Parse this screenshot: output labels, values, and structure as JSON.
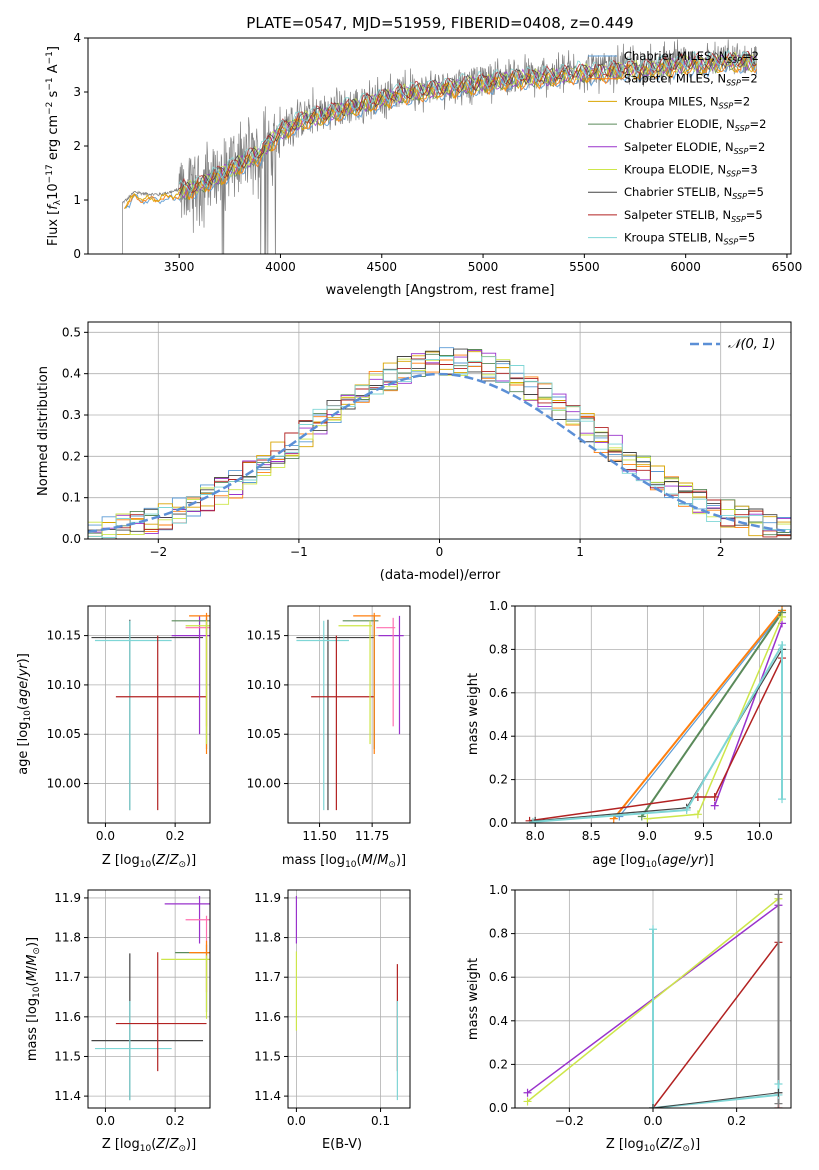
{
  "chart_data": [
    {
      "id": "spectrum",
      "type": "line",
      "title": "PLATE=0547, MJD=51959, FIBERID=0408, z=0.449",
      "xlabel": "wavelength [Angstrom, rest frame]",
      "ylabel": "Flux [fλ10⁻¹⁷ erg cm⁻² s⁻¹ A⁻¹]",
      "xlim": [
        3050,
        6520
      ],
      "ylim": [
        0,
        4
      ],
      "xticks": [
        "3500",
        "4000",
        "4500",
        "5000",
        "5500",
        "6000",
        "6500"
      ],
      "xtick_values": [
        3500,
        4000,
        4500,
        5000,
        5500,
        6000,
        6500
      ],
      "yticks": [
        "0",
        "1",
        "2",
        "3",
        "4"
      ],
      "ytick_values": [
        0,
        1,
        2,
        3,
        4
      ],
      "data_color": "#808080",
      "continuum": {
        "x": [
          3220,
          3240,
          3280,
          3320,
          3400,
          3460,
          3500,
          3600,
          3700,
          3800,
          3900,
          4000,
          4100,
          4200,
          4300,
          4400,
          4500,
          4600,
          4700,
          4800,
          4900,
          5000,
          5100,
          5200,
          5300,
          5400,
          5500,
          5600,
          5700,
          5800,
          5900,
          6000,
          6100,
          6200,
          6300,
          6350
        ],
        "y": [
          0.95,
          1.0,
          1.15,
          1.12,
          1.1,
          1.15,
          1.18,
          1.3,
          1.5,
          1.7,
          1.9,
          2.3,
          2.5,
          2.6,
          2.7,
          2.8,
          2.9,
          3.0,
          3.05,
          3.1,
          3.15,
          3.2,
          3.25,
          3.3,
          3.3,
          3.35,
          3.4,
          3.4,
          3.45,
          3.45,
          3.5,
          3.55,
          3.55,
          3.6,
          3.6,
          3.6
        ]
      },
      "legend_position": "right",
      "series": [
        {
          "name": "Chabrier MILES, N",
          "sub": "SSP",
          "suffix": "=2",
          "color": "#5b9bd5",
          "lw": 1
        },
        {
          "name": "Salpeter MILES, N",
          "sub": "SSP",
          "suffix": "=2",
          "color": "#ff7f0e",
          "lw": 1
        },
        {
          "name": "Kroupa MILES, N",
          "sub": "SSP",
          "suffix": "=2",
          "color": "#d9a400",
          "lw": 1
        },
        {
          "name": "Chabrier ELODIE, N",
          "sub": "SSP",
          "suffix": "=2",
          "color": "#5a8a5a",
          "lw": 0.8
        },
        {
          "name": "Salpeter ELODIE, N",
          "sub": "SSP",
          "suffix": "=2",
          "color": "#9932cc",
          "lw": 0.8
        },
        {
          "name": "Kroupa ELODIE, N",
          "sub": "SSP",
          "suffix": "=3",
          "color": "#cde64a",
          "lw": 0.8
        },
        {
          "name": "Chabrier STELIB, N",
          "sub": "SSP",
          "suffix": "=5",
          "color": "#444444",
          "lw": 0.8
        },
        {
          "name": "Salpeter STELIB, N",
          "sub": "SSP",
          "suffix": "=5",
          "color": "#b22222",
          "lw": 0.8
        },
        {
          "name": "Kroupa STELIB, N",
          "sub": "SSP",
          "suffix": "=5",
          "color": "#7fd6d6",
          "lw": 0.8
        }
      ]
    },
    {
      "id": "residuals",
      "type": "histogram",
      "xlabel": "(data-model)/error",
      "ylabel": "Normed distribution",
      "xlim": [
        -2.5,
        2.5
      ],
      "ylim": [
        0,
        0.525
      ],
      "xticks": [
        "−2",
        "−1",
        "0",
        "1",
        "2"
      ],
      "xtick_values": [
        -2,
        -1,
        0,
        1,
        2
      ],
      "yticks": [
        "0.0",
        "0.1",
        "0.2",
        "0.3",
        "0.4",
        "0.5"
      ],
      "ytick_values": [
        0,
        0.1,
        0.2,
        0.3,
        0.4,
        0.5
      ],
      "grid": true,
      "bin_width": 0.1,
      "legend_position": "top-right",
      "gaussian": {
        "name": "𝒩(0, 1)",
        "color": "#5b8fd6",
        "mu": 0,
        "sigma": 1
      },
      "hist_colors": [
        "#5b9bd5",
        "#ff7f0e",
        "#d9a400",
        "#5a8a5a",
        "#9932cc",
        "#cde64a",
        "#444444",
        "#b22222",
        "#7fd6d6"
      ]
    },
    {
      "id": "age_vs_Z",
      "type": "errorbar",
      "xlabel": "Z [log₁₀(Z/Z⊙)]",
      "ylabel": "age  [log₁₀(age/yr)]",
      "xlim": [
        -0.05,
        0.3
      ],
      "ylim": [
        9.96,
        10.18
      ],
      "xticks": [
        "0.0",
        "0.2"
      ],
      "xtick_values": [
        0,
        0.2
      ],
      "yticks": [
        "10.00",
        "10.05",
        "10.10",
        "10.15"
      ],
      "ytick_values": [
        10.0,
        10.05,
        10.1,
        10.15
      ],
      "points": [
        {
          "x": 0.07,
          "y": 10.148,
          "xerr": [
            0.11,
            0.21
          ],
          "yerr": [
            0.175,
            0.018
          ],
          "color": "#444444"
        },
        {
          "x": 0.07,
          "y": 10.145,
          "xerr": [
            0.1,
            0.12
          ],
          "yerr": [
            0.172,
            0.02
          ],
          "color": "#7fd6d6"
        },
        {
          "x": 0.15,
          "y": 10.088,
          "xerr": [
            0.12,
            0.14
          ],
          "yerr": [
            0.115,
            0.062
          ],
          "color": "#b22222"
        },
        {
          "x": 0.27,
          "y": 10.15,
          "xerr": [
            0.08,
            0.03
          ],
          "yerr": [
            0.1,
            0.02
          ],
          "color": "#9932cc"
        },
        {
          "x": 0.29,
          "y": 10.158,
          "xerr": [
            0.06,
            0.01
          ],
          "yerr": [
            0.1,
            0.01
          ],
          "color": "#ff6fb0"
        },
        {
          "x": 0.29,
          "y": 10.165,
          "xerr": [
            0.1,
            0.01
          ],
          "yerr": [
            0.13,
            0.005
          ],
          "color": "#5a8a5a"
        },
        {
          "x": 0.29,
          "y": 10.17,
          "xerr": [
            0.05,
            0.01
          ],
          "yerr": [
            0.14,
            0.003
          ],
          "color": "#ff7f0e"
        },
        {
          "x": 0.29,
          "y": 10.16,
          "xerr": [
            0.06,
            0.01
          ],
          "yerr": [
            0.12,
            0.005
          ],
          "color": "#cde64a"
        }
      ]
    },
    {
      "id": "age_vs_mass",
      "type": "errorbar",
      "xlabel": "mass [log₁₀(M/M⊙)]",
      "ylabel": "",
      "xlim": [
        11.35,
        11.93
      ],
      "ylim": [
        9.96,
        10.18
      ],
      "xticks": [
        "11.50",
        "11.75"
      ],
      "xtick_values": [
        11.5,
        11.75
      ],
      "yticks": [
        "10.00",
        "10.05",
        "10.10",
        "10.15"
      ],
      "ytick_values": [
        10.0,
        10.05,
        10.1,
        10.15
      ],
      "points": [
        {
          "x": 11.54,
          "y": 10.148,
          "xerr": [
            0.15,
            0.22
          ],
          "yerr": [
            0.175,
            0.018
          ],
          "color": "#444444"
        },
        {
          "x": 11.52,
          "y": 10.145,
          "xerr": [
            0.13,
            0.12
          ],
          "yerr": [
            0.172,
            0.02
          ],
          "color": "#7fd6d6"
        },
        {
          "x": 11.58,
          "y": 10.088,
          "xerr": [
            0.12,
            0.18
          ],
          "yerr": [
            0.115,
            0.062
          ],
          "color": "#b22222"
        },
        {
          "x": 11.88,
          "y": 10.15,
          "xerr": [
            0.1,
            0.02
          ],
          "yerr": [
            0.1,
            0.02
          ],
          "color": "#9932cc"
        },
        {
          "x": 11.85,
          "y": 10.158,
          "xerr": [
            0.08,
            0.01
          ],
          "yerr": [
            0.1,
            0.01
          ],
          "color": "#ff6fb0"
        },
        {
          "x": 11.76,
          "y": 10.165,
          "xerr": [
            0.15,
            0.02
          ],
          "yerr": [
            0.13,
            0.005
          ],
          "color": "#5a8a5a"
        },
        {
          "x": 11.76,
          "y": 10.17,
          "xerr": [
            0.1,
            0.03
          ],
          "yerr": [
            0.14,
            0.003
          ],
          "color": "#ff7f0e"
        },
        {
          "x": 11.74,
          "y": 10.16,
          "xerr": [
            0.15,
            0.01
          ],
          "yerr": [
            0.12,
            0.005
          ],
          "color": "#cde64a"
        }
      ]
    },
    {
      "id": "massweight_vs_age",
      "type": "line",
      "xlabel": "age  [log₁₀(age/yr)]",
      "ylabel": "mass weight",
      "xlim": [
        7.82,
        10.28
      ],
      "ylim": [
        0,
        1
      ],
      "xticks": [
        "8.0",
        "8.5",
        "9.0",
        "9.5",
        "10.0"
      ],
      "xtick_values": [
        8.0,
        8.5,
        9.0,
        9.5,
        10.0
      ],
      "yticks": [
        "0.0",
        "0.2",
        "0.4",
        "0.6",
        "0.8",
        "1.0"
      ],
      "ytick_values": [
        0,
        0.2,
        0.4,
        0.6,
        0.8,
        1.0
      ],
      "grid": true,
      "series": [
        {
          "color": "#ff7f0e",
          "x": [
            8.7,
            10.2
          ],
          "y": [
            0.02,
            0.98
          ],
          "lw": 2
        },
        {
          "color": "#5b9bd5",
          "x": [
            8.75,
            10.2
          ],
          "y": [
            0.03,
            0.97
          ],
          "lw": 1.2
        },
        {
          "color": "#5a8a5a",
          "x": [
            8.95,
            10.2
          ],
          "y": [
            0.03,
            0.97
          ],
          "lw": 2
        },
        {
          "color": "#9932cc",
          "x": [
            9.6,
            10.2
          ],
          "y": [
            0.08,
            0.92
          ],
          "lw": 1.5
        },
        {
          "color": "#cde64a",
          "x": [
            9.0,
            9.45,
            10.2
          ],
          "y": [
            0.02,
            0.04,
            0.95
          ],
          "lw": 1.5
        },
        {
          "color": "#b22222",
          "x": [
            7.95,
            9.45,
            9.6,
            10.2
          ],
          "y": [
            0.01,
            0.12,
            0.12,
            0.76
          ],
          "lw": 1.5
        },
        {
          "color": "#444444",
          "x": [
            8.0,
            9.35,
            10.2
          ],
          "y": [
            0.01,
            0.07,
            0.8
          ],
          "lw": 1.2
        },
        {
          "color": "#7fd6d6",
          "x": [
            7.98,
            9.35,
            10.2,
            10.2
          ],
          "y": [
            0.005,
            0.06,
            0.82,
            0.11
          ],
          "lw": 2
        }
      ]
    },
    {
      "id": "mass_vs_Z",
      "type": "errorbar",
      "xlabel": "Z [log₁₀(Z/Z⊙)]",
      "ylabel": "mass [log₁₀(M/M⊙)]",
      "xlim": [
        -0.05,
        0.3
      ],
      "ylim": [
        11.37,
        11.92
      ],
      "xticks": [
        "0.0",
        "0.2"
      ],
      "xtick_values": [
        0,
        0.2
      ],
      "yticks": [
        "11.4",
        "11.5",
        "11.6",
        "11.7",
        "11.8",
        "11.9"
      ],
      "ytick_values": [
        11.4,
        11.5,
        11.6,
        11.7,
        11.8,
        11.9
      ],
      "points": [
        {
          "x": 0.07,
          "y": 11.54,
          "xerr": [
            0.11,
            0.21
          ],
          "yerr": [
            0.15,
            0.22
          ],
          "color": "#444444"
        },
        {
          "x": 0.07,
          "y": 11.52,
          "xerr": [
            0.1,
            0.12
          ],
          "yerr": [
            0.13,
            0.12
          ],
          "color": "#7fd6d6"
        },
        {
          "x": 0.15,
          "y": 11.583,
          "xerr": [
            0.12,
            0.14
          ],
          "yerr": [
            0.12,
            0.18
          ],
          "color": "#b22222"
        },
        {
          "x": 0.27,
          "y": 11.885,
          "xerr": [
            0.1,
            0.03
          ],
          "yerr": [
            0.1,
            0.02
          ],
          "color": "#9932cc"
        },
        {
          "x": 0.29,
          "y": 11.845,
          "xerr": [
            0.06,
            0.01
          ],
          "yerr": [
            0.08,
            0.01
          ],
          "color": "#ff6fb0"
        },
        {
          "x": 0.29,
          "y": 11.762,
          "xerr": [
            0.09,
            0.01
          ],
          "yerr": [
            0.15,
            0.02
          ],
          "color": "#5a8a5a"
        },
        {
          "x": 0.29,
          "y": 11.762,
          "xerr": [
            0.05,
            0.01
          ],
          "yerr": [
            0.1,
            0.03
          ],
          "color": "#ff7f0e"
        },
        {
          "x": 0.29,
          "y": 11.745,
          "xerr": [
            0.13,
            0.01
          ],
          "yerr": [
            0.15,
            0.01
          ],
          "color": "#cde64a"
        }
      ]
    },
    {
      "id": "mass_vs_ebv",
      "type": "errorbar",
      "xlabel": "E(B-V)",
      "ylabel": "",
      "xlim": [
        -0.01,
        0.135
      ],
      "ylim": [
        11.37,
        11.92
      ],
      "xticks": [
        "0.0",
        "0.1"
      ],
      "xtick_values": [
        0,
        0.1
      ],
      "yticks": [
        "11.4",
        "11.5",
        "11.6",
        "11.7",
        "11.8",
        "11.9"
      ],
      "ytick_values": [
        11.4,
        11.5,
        11.6,
        11.7,
        11.8,
        11.9
      ],
      "points": [
        {
          "x": 0.0,
          "y": 11.885,
          "xerr": [
            0,
            0
          ],
          "yerr": [
            0.1,
            0.02
          ],
          "color": "#9932cc"
        },
        {
          "x": 0.0,
          "y": 11.745,
          "xerr": [
            0,
            0
          ],
          "yerr": [
            0.18,
            0.02
          ],
          "color": "#cde64a"
        },
        {
          "x": 0.12,
          "y": 11.583,
          "xerr": [
            0,
            0
          ],
          "yerr": [
            0.12,
            0.15
          ],
          "color": "#b22222"
        },
        {
          "x": 0.12,
          "y": 11.52,
          "xerr": [
            0,
            0
          ],
          "yerr": [
            0.13,
            0.12
          ],
          "color": "#7fd6d6"
        }
      ]
    },
    {
      "id": "massweight_vs_Z",
      "type": "line",
      "xlabel": "Z [log₁₀(Z/Z⊙)]",
      "ylabel": "mass weight",
      "xlim": [
        -0.33,
        0.33
      ],
      "ylim": [
        0,
        1
      ],
      "xticks": [
        "−0.2",
        "0.0",
        "0.2"
      ],
      "xtick_values": [
        -0.2,
        0.0,
        0.2
      ],
      "yticks": [
        "0.0",
        "0.2",
        "0.4",
        "0.6",
        "0.8",
        "1.0"
      ],
      "ytick_values": [
        0,
        0.2,
        0.4,
        0.6,
        0.8,
        1.0
      ],
      "grid": true,
      "series": [
        {
          "color": "#9932cc",
          "x": [
            -0.3,
            0.3
          ],
          "y": [
            0.07,
            0.93
          ],
          "lw": 1.5
        },
        {
          "color": "#cde64a",
          "x": [
            -0.3,
            0.3
          ],
          "y": [
            0.03,
            0.96
          ],
          "lw": 1.5
        },
        {
          "color": "#b22222",
          "x": [
            0.0,
            0.3,
            0.3
          ],
          "y": [
            0.0,
            0.76,
            0.0
          ],
          "lw": 1.5
        },
        {
          "color": "#808080",
          "x": [
            0.3,
            0.3
          ],
          "y": [
            0.98,
            0.02
          ],
          "lw": 2
        },
        {
          "color": "#7fd6d6",
          "x": [
            0.0,
            0.0,
            0.0,
            0.3,
            0.3
          ],
          "y": [
            0.82,
            0.0,
            0.0,
            0.06,
            0.11
          ],
          "lw": 2
        },
        {
          "color": "#444444",
          "x": [
            0.0,
            0.3
          ],
          "y": [
            0.0,
            0.07
          ],
          "lw": 1
        }
      ]
    }
  ]
}
